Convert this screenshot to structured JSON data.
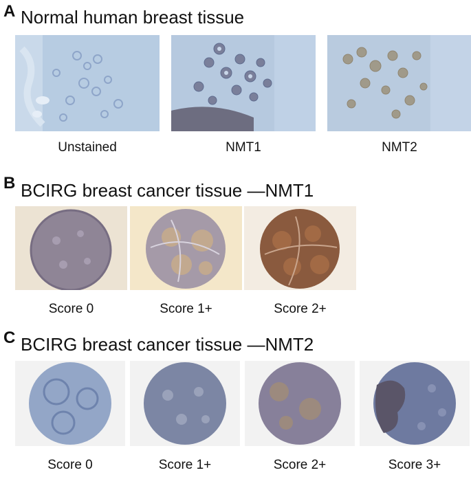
{
  "panels": [
    {
      "letter": "A",
      "title": "Normal human breast tissue",
      "images": [
        {
          "caption": "Unstained",
          "stain": "unstained-icon"
        },
        {
          "caption": "NMT1",
          "stain": "nmt1-stained-icon"
        },
        {
          "caption": "NMT2",
          "stain": "nmt2-stained-icon"
        }
      ]
    },
    {
      "letter": "B",
      "title": "BCIRG breast cancer tissue —NMT1",
      "images": [
        {
          "caption": "Score 0",
          "stain": "tissue-core-icon"
        },
        {
          "caption": "Score 1+",
          "stain": "tissue-core-icon"
        },
        {
          "caption": "Score 2+",
          "stain": "tissue-core-icon"
        }
      ]
    },
    {
      "letter": "C",
      "title": "BCIRG breast cancer tissue —NMT2",
      "images": [
        {
          "caption": "Score 0",
          "stain": "tissue-core-icon"
        },
        {
          "caption": "Score 1+",
          "stain": "tissue-core-icon"
        },
        {
          "caption": "Score 2+",
          "stain": "tissue-core-icon"
        },
        {
          "caption": "Score 3+",
          "stain": "tissue-core-icon"
        }
      ]
    }
  ],
  "colors": {
    "background_blue": "#b9cde0",
    "hematoxylin": "#6f83ad",
    "dab_brown": "#8a5a3a",
    "slide_cream": "#efe6d6",
    "slide_white": "#f3f3f3"
  }
}
